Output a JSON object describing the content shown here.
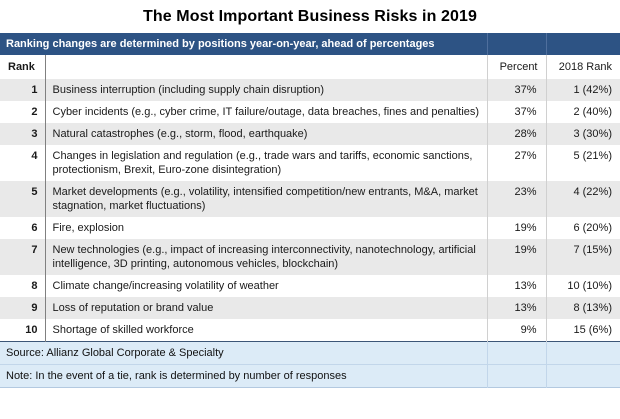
{
  "chart_data": {
    "type": "table",
    "title": "The Most Important Business Risks in 2019",
    "banner": "Ranking changes are determined by positions year-on-year, ahead of percentages",
    "columns": {
      "rank": "Rank",
      "risk": "",
      "percent": "Percent",
      "rank_2018": "2018 Rank"
    },
    "rows": [
      {
        "rank": "1",
        "risk": "Business interruption (including supply chain disruption)",
        "percent": "37%",
        "rank_2018": "1 (42%)"
      },
      {
        "rank": "2",
        "risk": "Cyber incidents (e.g., cyber crime, IT failure/outage, data breaches, fines and penalties)",
        "percent": "37%",
        "rank_2018": "2 (40%)"
      },
      {
        "rank": "3",
        "risk": "Natural catastrophes (e.g., storm, flood, earthquake)",
        "percent": "28%",
        "rank_2018": "3 (30%)"
      },
      {
        "rank": "4",
        "risk": "Changes in legislation and regulation (e.g., trade wars and tariffs, economic sanctions, protectionism, Brexit, Euro-zone disintegration)",
        "percent": "27%",
        "rank_2018": "5 (21%)"
      },
      {
        "rank": "5",
        "risk": "Market developments (e.g., volatility, intensified competition/new entrants, M&A, market stagnation, market fluctuations)",
        "percent": "23%",
        "rank_2018": "4 (22%)"
      },
      {
        "rank": "6",
        "risk": "Fire, explosion",
        "percent": "19%",
        "rank_2018": "6 (20%)"
      },
      {
        "rank": "7",
        "risk": "New technologies (e.g., impact of increasing interconnectivity, nanotechnology, artificial intelligence, 3D printing, autonomous vehicles, blockchain)",
        "percent": "19%",
        "rank_2018": "7 (15%)"
      },
      {
        "rank": "8",
        "risk": "Climate change/increasing volatility of weather",
        "percent": "13%",
        "rank_2018": "10 (10%)"
      },
      {
        "rank": "9",
        "risk": "Loss of reputation or brand value",
        "percent": "13%",
        "rank_2018": "8 (13%)"
      },
      {
        "rank": "10",
        "risk": "Shortage of skilled workforce",
        "percent": "9%",
        "rank_2018": "15 (6%)"
      }
    ],
    "footer": {
      "source": "Source: Allianz Global Corporate & Specialty",
      "note": "Note: In the event of a tie, rank is determined by number of responses"
    },
    "colors": {
      "banner_bg": "#2d5384",
      "banner_text": "#ffffff",
      "stripe_bg": "#e9e9e9",
      "footer_bg": "#dcebf7",
      "rank_divider": "#808080",
      "light_divider": "#d0d0d0"
    }
  }
}
